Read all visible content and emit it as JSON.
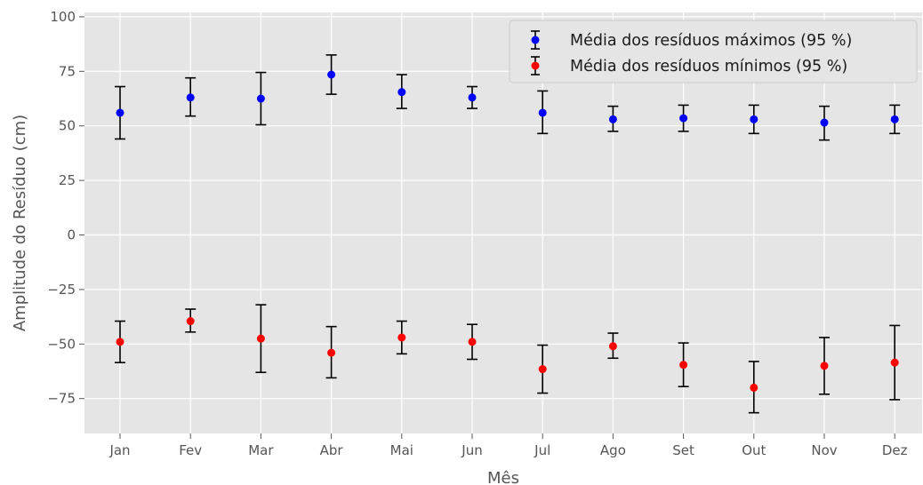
{
  "chart_data": {
    "type": "scatter",
    "title": "",
    "xlabel": "Mês",
    "ylabel": "Amplitude do Resíduo (cm)",
    "categories": [
      "Jan",
      "Fev",
      "Mar",
      "Abr",
      "Mai",
      "Jun",
      "Jul",
      "Ago",
      "Set",
      "Out",
      "Nov",
      "Dez"
    ],
    "ylim": [
      -91,
      102
    ],
    "yticks": [
      -75,
      -50,
      -25,
      0,
      25,
      50,
      75,
      100
    ],
    "ytick_labels": [
      "−75",
      "−50",
      "−25",
      "0",
      "25",
      "50",
      "75",
      "100"
    ],
    "grid": true,
    "legend_position": "top-right",
    "series": [
      {
        "name": "Média dos resíduos máximos (95 %)",
        "color": "#0000ff",
        "values": [
          56,
          63,
          62.5,
          73.5,
          65.5,
          63,
          56,
          53,
          53.5,
          53,
          51.5,
          53
        ],
        "err_low": [
          44,
          54.5,
          50.5,
          64.5,
          58,
          58,
          46.5,
          47.5,
          47.5,
          46.5,
          43.5,
          46.5
        ],
        "err_high": [
          68,
          72,
          74.5,
          82.5,
          73.5,
          68,
          66,
          59,
          59.5,
          59.5,
          59,
          59.5
        ]
      },
      {
        "name": "Média dos resíduos mínimos (95 %)",
        "color": "#ff0000",
        "values": [
          -49,
          -39.5,
          -47.5,
          -54,
          -47,
          -49,
          -61.5,
          -51,
          -59.5,
          -70,
          -60,
          -58.5
        ],
        "err_low": [
          -58.5,
          -44.5,
          -63,
          -65.5,
          -54.5,
          -57,
          -72.5,
          -56.5,
          -69.5,
          -81.5,
          -73,
          -75.5
        ],
        "err_high": [
          -39.5,
          -34,
          -32,
          -42,
          -39.5,
          -41,
          -50.5,
          -45,
          -49.5,
          -58,
          -47,
          -41.5
        ]
      }
    ]
  }
}
